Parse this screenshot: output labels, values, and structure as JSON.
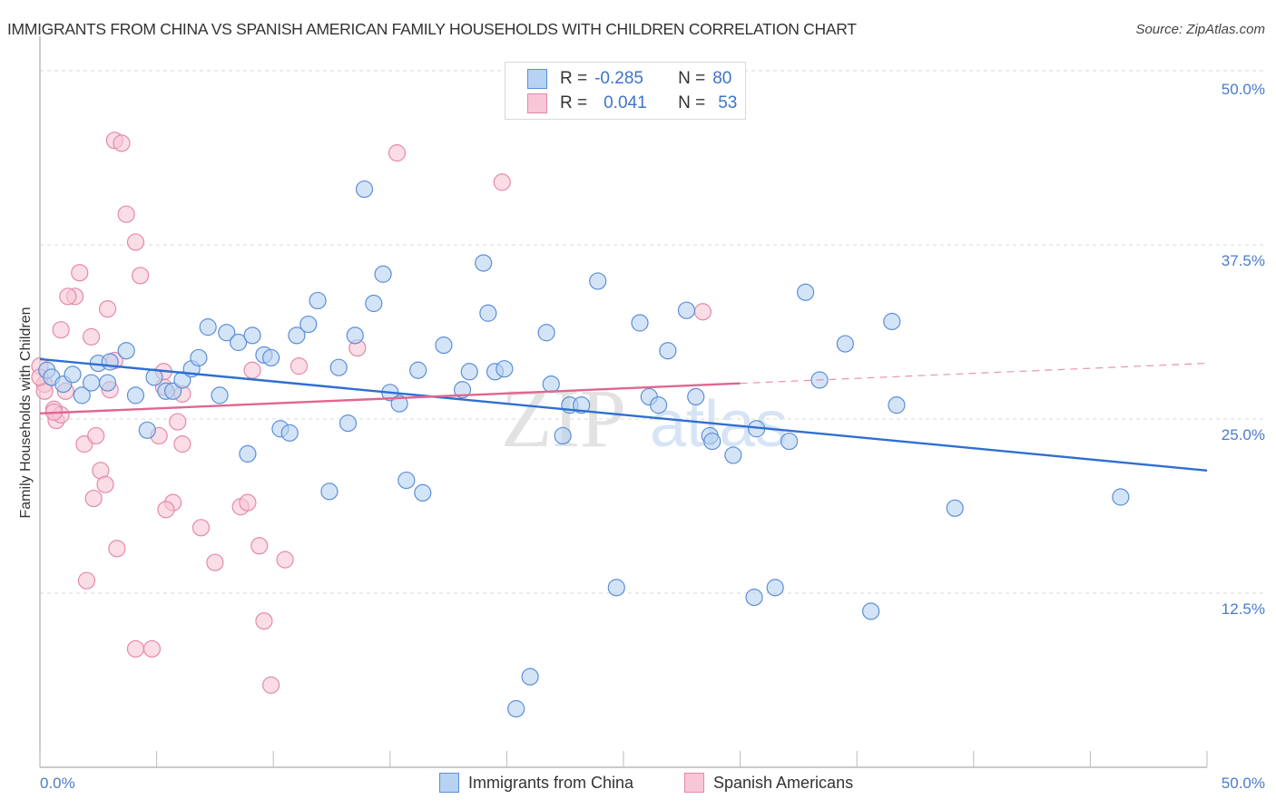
{
  "header": {
    "title": "IMMIGRANTS FROM CHINA VS SPANISH AMERICAN FAMILY HOUSEHOLDS WITH CHILDREN CORRELATION CHART",
    "source": "Source: ZipAtlas.com"
  },
  "legend": {
    "rows": [
      {
        "r_label": "R =",
        "r_value": "-0.285",
        "n_label": "N =",
        "n_value": "80"
      },
      {
        "r_label": "R =",
        "r_value": "0.041",
        "n_label": "N =",
        "n_value": "53"
      }
    ]
  },
  "colors": {
    "blue_fill": "#b8d2f2",
    "blue_stroke": "#5b8fd8",
    "blue_line": "#2f6fd0",
    "pink_fill": "#f8c6d6",
    "pink_stroke": "#e48aa8",
    "pink_line": "#e06690",
    "tick_text": "#4a7cc9",
    "grid": "#d9d9d9"
  },
  "watermark": {
    "zip": "ZIP",
    "atlas": "atlas"
  },
  "chart_data": {
    "type": "scatter",
    "title": "IMMIGRANTS FROM CHINA VS SPANISH AMERICAN FAMILY HOUSEHOLDS WITH CHILDREN CORRELATION CHART",
    "xlabel": "",
    "ylabel": "Family Households with Children",
    "xlim": [
      0,
      50
    ],
    "ylim": [
      0,
      50
    ],
    "x_tick_labels": [
      "0.0%",
      "50.0%"
    ],
    "y_tick_labels": [
      "12.5%",
      "25.0%",
      "37.5%",
      "50.0%"
    ],
    "y_ticks": [
      12.5,
      25.0,
      37.5,
      50.0
    ],
    "x_minor_ticks": [
      0,
      5,
      10,
      15,
      20,
      25,
      30,
      35,
      40,
      45,
      50
    ],
    "grid": true,
    "legend_position": "top-center",
    "series": [
      {
        "name": "Immigrants from China",
        "r": -0.285,
        "n": 80,
        "trend": {
          "x": [
            0,
            50
          ],
          "y": [
            29.3,
            21.3
          ],
          "solid_to": 50
        },
        "points": [
          [
            0.3,
            28.5
          ],
          [
            0.5,
            28.0
          ],
          [
            1.0,
            27.5
          ],
          [
            1.4,
            28.2
          ],
          [
            1.8,
            26.7
          ],
          [
            2.2,
            27.6
          ],
          [
            2.5,
            29.0
          ],
          [
            2.9,
            27.6
          ],
          [
            3.0,
            29.1
          ],
          [
            3.7,
            29.9
          ],
          [
            4.1,
            26.7
          ],
          [
            4.6,
            24.2
          ],
          [
            4.9,
            28.0
          ],
          [
            5.4,
            27.0
          ],
          [
            5.7,
            27.0
          ],
          [
            6.1,
            27.8
          ],
          [
            6.5,
            28.6
          ],
          [
            6.8,
            29.4
          ],
          [
            7.2,
            31.6
          ],
          [
            7.7,
            26.7
          ],
          [
            8.0,
            31.2
          ],
          [
            8.5,
            30.5
          ],
          [
            8.9,
            22.5
          ],
          [
            9.1,
            31.0
          ],
          [
            9.6,
            29.6
          ],
          [
            9.9,
            29.4
          ],
          [
            10.3,
            24.3
          ],
          [
            10.7,
            24.0
          ],
          [
            11.0,
            31.0
          ],
          [
            11.5,
            31.8
          ],
          [
            11.9,
            33.5
          ],
          [
            12.4,
            19.8
          ],
          [
            12.8,
            28.7
          ],
          [
            13.2,
            24.7
          ],
          [
            13.5,
            31.0
          ],
          [
            13.9,
            41.5
          ],
          [
            14.3,
            33.3
          ],
          [
            14.7,
            35.4
          ],
          [
            15.0,
            26.9
          ],
          [
            15.4,
            26.1
          ],
          [
            15.7,
            20.6
          ],
          [
            16.2,
            28.5
          ],
          [
            16.4,
            19.7
          ],
          [
            17.3,
            30.3
          ],
          [
            18.1,
            27.1
          ],
          [
            18.4,
            28.4
          ],
          [
            19.0,
            36.2
          ],
          [
            19.2,
            32.6
          ],
          [
            19.5,
            28.4
          ],
          [
            19.9,
            28.6
          ],
          [
            21.7,
            31.2
          ],
          [
            21.9,
            27.5
          ],
          [
            22.4,
            23.8
          ],
          [
            22.7,
            26.0
          ],
          [
            23.2,
            26.0
          ],
          [
            23.9,
            34.9
          ],
          [
            24.7,
            12.9
          ],
          [
            25.7,
            31.9
          ],
          [
            26.1,
            26.6
          ],
          [
            26.5,
            26.0
          ],
          [
            26.9,
            29.9
          ],
          [
            27.7,
            32.8
          ],
          [
            28.1,
            26.6
          ],
          [
            28.7,
            23.8
          ],
          [
            28.8,
            23.4
          ],
          [
            29.7,
            22.4
          ],
          [
            30.6,
            12.2
          ],
          [
            30.7,
            24.3
          ],
          [
            31.5,
            12.9
          ],
          [
            32.1,
            23.4
          ],
          [
            32.8,
            34.1
          ],
          [
            33.4,
            27.8
          ],
          [
            34.5,
            30.4
          ],
          [
            35.6,
            11.2
          ],
          [
            36.5,
            32.0
          ],
          [
            36.7,
            26.0
          ],
          [
            39.2,
            18.6
          ],
          [
            46.3,
            19.4
          ],
          [
            21.0,
            6.5
          ],
          [
            20.4,
            4.2
          ]
        ]
      },
      {
        "name": "Spanish Americans",
        "r": 0.041,
        "n": 53,
        "trend": {
          "x": [
            0,
            50
          ],
          "y": [
            25.4,
            29.0
          ],
          "solid_to": 30
        },
        "points": [
          [
            3.2,
            45.0
          ],
          [
            3.5,
            44.8
          ],
          [
            3.7,
            39.7
          ],
          [
            4.1,
            37.7
          ],
          [
            4.3,
            35.3
          ],
          [
            1.7,
            35.5
          ],
          [
            1.5,
            33.8
          ],
          [
            1.2,
            33.8
          ],
          [
            2.9,
            32.9
          ],
          [
            0.9,
            31.4
          ],
          [
            2.2,
            30.9
          ],
          [
            0.0,
            28.8
          ],
          [
            0.2,
            27.5
          ],
          [
            0.6,
            25.7
          ],
          [
            0.7,
            24.9
          ],
          [
            0.9,
            25.3
          ],
          [
            1.9,
            23.2
          ],
          [
            2.4,
            23.8
          ],
          [
            2.6,
            21.3
          ],
          [
            2.8,
            20.3
          ],
          [
            2.3,
            19.3
          ],
          [
            3.3,
            15.7
          ],
          [
            2.0,
            13.4
          ],
          [
            4.1,
            8.5
          ],
          [
            4.8,
            8.5
          ],
          [
            3.2,
            29.2
          ],
          [
            3.0,
            27.1
          ],
          [
            5.3,
            27.3
          ],
          [
            5.1,
            23.8
          ],
          [
            5.7,
            19.0
          ],
          [
            5.4,
            18.5
          ],
          [
            5.9,
            24.8
          ],
          [
            6.1,
            23.2
          ],
          [
            6.9,
            17.2
          ],
          [
            7.5,
            14.7
          ],
          [
            8.6,
            18.7
          ],
          [
            8.9,
            19.0
          ],
          [
            9.1,
            28.5
          ],
          [
            9.4,
            15.9
          ],
          [
            9.6,
            10.5
          ],
          [
            9.9,
            5.9
          ],
          [
            10.5,
            14.9
          ],
          [
            11.1,
            28.8
          ],
          [
            13.6,
            30.1
          ],
          [
            15.3,
            44.1
          ],
          [
            19.8,
            42.0
          ],
          [
            28.4,
            32.7
          ],
          [
            5.3,
            28.4
          ],
          [
            0.2,
            27.0
          ],
          [
            0.6,
            25.5
          ],
          [
            0.0,
            28.0
          ],
          [
            1.1,
            27.0
          ],
          [
            6.1,
            26.8
          ]
        ]
      }
    ]
  },
  "bottom_legend": [
    {
      "label": "Immigrants from China"
    },
    {
      "label": "Spanish Americans"
    }
  ]
}
